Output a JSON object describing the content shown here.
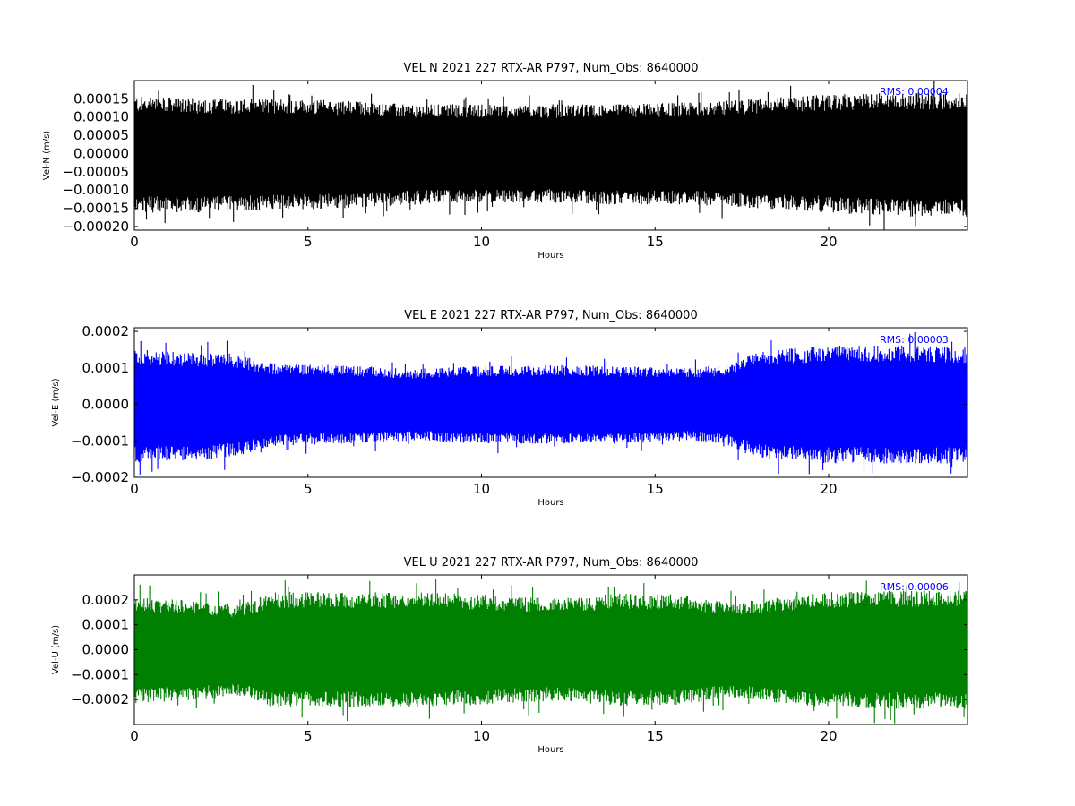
{
  "chart_data": [
    {
      "type": "line",
      "title": "VEL N 2021 227 RTX-AR  P797, Num_Obs: 8640000",
      "xlabel": "Hours",
      "ylabel": "Vel-N (m/s)",
      "xlim": [
        0,
        24
      ],
      "ylim": [
        -0.00021,
        0.0002
      ],
      "xticks": [
        0,
        5,
        10,
        15,
        20
      ],
      "xtick_labels": [
        "0",
        "5",
        "10",
        "15",
        "20"
      ],
      "yticks": [
        -0.0002,
        -0.00015,
        -0.0001,
        -5e-05,
        0,
        5e-05,
        0.0001,
        0.00015
      ],
      "ytick_labels": [
        "−0.00020",
        "−0.00015",
        "−0.00010",
        "−0.00005",
        "0.00000",
        "0.00005",
        "0.00010",
        "0.00015"
      ],
      "color": "#000000",
      "annotation": "RMS:  0.00004",
      "annotation_color": "#0000ff",
      "series": [
        {
          "values_description_hours": [
            0,
            2,
            4,
            6,
            8,
            10,
            12,
            14,
            16,
            18,
            20,
            22,
            24
          ],
          "band_upper": [
            0.000145,
            0.00014,
            0.00014,
            0.000135,
            0.000125,
            0.000125,
            0.000125,
            0.000125,
            0.00013,
            0.00014,
            0.00015,
            0.000155,
            0.000155
          ],
          "band_lower": [
            -0.00015,
            -0.00015,
            -0.000145,
            -0.00014,
            -0.00013,
            -0.000125,
            -0.000125,
            -0.00013,
            -0.00013,
            -0.00014,
            -0.00015,
            -0.00016,
            -0.00016
          ]
        }
      ]
    },
    {
      "type": "line",
      "title": "VEL E 2021 227 RTX-AR  P797, Num_Obs: 8640000",
      "xlabel": "Hours",
      "ylabel": "Vel-E (m/s)",
      "xlim": [
        0,
        24
      ],
      "ylim": [
        -0.0002,
        0.00021
      ],
      "xticks": [
        0,
        5,
        10,
        15,
        20
      ],
      "xtick_labels": [
        "0",
        "5",
        "10",
        "15",
        "20"
      ],
      "yticks": [
        -0.0002,
        -0.0001,
        0,
        0.0001,
        0.0002
      ],
      "ytick_labels": [
        "−0.0002",
        "−0.0001",
        "0.0000",
        "0.0001",
        "0.0002"
      ],
      "color": "#0000ff",
      "annotation": "RMS:  0.00003",
      "annotation_color": "#0000ff",
      "series": [
        {
          "values_description_hours": [
            0,
            2,
            2.8,
            4,
            6,
            8,
            10,
            12,
            14,
            16,
            17,
            18,
            20,
            22,
            24
          ],
          "band_upper": [
            0.00014,
            0.00013,
            0.00013,
            0.000105,
            0.0001,
            8.95e-05,
            9.75e-05,
            0.0001,
            9.75e-05,
            9.25e-05,
            0.0001,
            0.000135,
            0.00015,
            0.00015,
            0.000145
          ],
          "band_lower": [
            -0.00015,
            -0.00014,
            -0.000135,
            -0.000105,
            -0.0001,
            -9.25e-05,
            -0.0001,
            -0.0001,
            -0.0001,
            -9.25e-05,
            -0.0001,
            -0.00014,
            -0.00015,
            -0.00015,
            -0.00015
          ]
        }
      ]
    },
    {
      "type": "line",
      "title": "VEL U 2021 227 RTX-AR  P797, Num_Obs: 8640000",
      "xlabel": "Hours",
      "ylabel": "Vel-U (m/s)",
      "xlim": [
        0,
        24
      ],
      "ylim": [
        -0.0003,
        0.0003
      ],
      "xticks": [
        0,
        5,
        10,
        15,
        20
      ],
      "xtick_labels": [
        "0",
        "5",
        "10",
        "15",
        "20"
      ],
      "yticks": [
        -0.0002,
        -0.0001,
        0,
        0.0001,
        0.0002
      ],
      "ytick_labels": [
        "−0.0002",
        "−0.0001",
        "0.0000",
        "0.0001",
        "0.0002"
      ],
      "color": "#008000",
      "annotation": "RMS:  0.00006",
      "annotation_color": "#0000ff",
      "series": [
        {
          "values_description_hours": [
            0,
            2,
            3,
            4,
            6,
            8,
            10,
            12,
            14,
            16,
            17,
            18,
            20,
            22,
            24
          ],
          "band_upper": [
            0.000195,
            0.00018,
            0.000165,
            0.000215,
            0.000215,
            0.000215,
            0.000205,
            0.00019,
            0.00021,
            0.000205,
            0.000175,
            0.000185,
            0.000215,
            0.00022,
            0.00022
          ],
          "band_lower": [
            -0.0002,
            -0.000185,
            -0.00017,
            -0.000215,
            -0.000215,
            -0.000215,
            -0.000205,
            -0.00019,
            -0.00021,
            -0.000205,
            -0.00018,
            -0.00019,
            -0.000215,
            -0.00022,
            -0.00022
          ]
        }
      ]
    }
  ]
}
